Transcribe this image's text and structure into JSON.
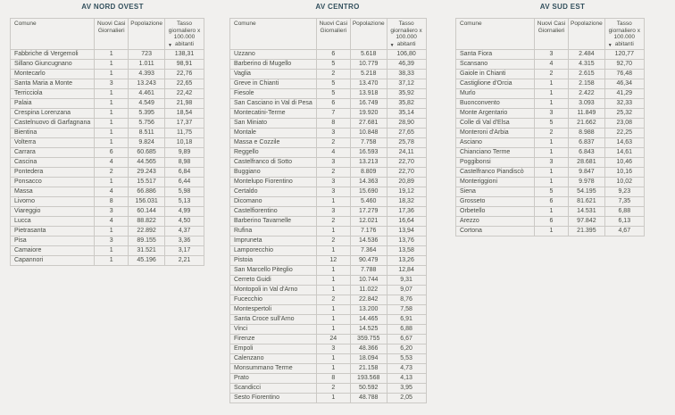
{
  "theme": {
    "background": "#f1f0ee",
    "title_color": "#33505d",
    "text_color": "#474b43",
    "border_color": "#cbc9c5"
  },
  "table": {
    "columns": [
      {
        "label": "Comune"
      },
      {
        "label": "Nuovi Casi Giornalieri"
      },
      {
        "label": "Popolazione"
      },
      {
        "label": "Tasso giornaliero x 100.000 abitanti",
        "sort_indicator": "descending"
      }
    ]
  },
  "regions": [
    {
      "title": "AV NORD OVEST",
      "rows": [
        [
          "Fabbriche di Vergemoli",
          "1",
          "723",
          "138,31"
        ],
        [
          "Sillano Giuncugnano",
          "1",
          "1.011",
          "98,91"
        ],
        [
          "Montecarlo",
          "1",
          "4.393",
          "22,76"
        ],
        [
          "Santa Maria a Monte",
          "3",
          "13.243",
          "22,65"
        ],
        [
          "Terricciola",
          "1",
          "4.461",
          "22,42"
        ],
        [
          "Palaia",
          "1",
          "4.549",
          "21,98"
        ],
        [
          "Crespina Lorenzana",
          "1",
          "5.395",
          "18,54"
        ],
        [
          "Castelnuovo di Garfagnana",
          "1",
          "5.756",
          "17,37"
        ],
        [
          "Bientina",
          "1",
          "8.511",
          "11,75"
        ],
        [
          "Volterra",
          "1",
          "9.824",
          "10,18"
        ],
        [
          "Carrara",
          "6",
          "60.685",
          "9,89"
        ],
        [
          "Cascina",
          "4",
          "44.565",
          "8,98"
        ],
        [
          "Pontedera",
          "2",
          "29.243",
          "6,84"
        ],
        [
          "Ponsacco",
          "1",
          "15.517",
          "6,44"
        ],
        [
          "Massa",
          "4",
          "66.886",
          "5,98"
        ],
        [
          "Livorno",
          "8",
          "156.031",
          "5,13"
        ],
        [
          "Viareggio",
          "3",
          "60.144",
          "4,99"
        ],
        [
          "Lucca",
          "4",
          "88.822",
          "4,50"
        ],
        [
          "Pietrasanta",
          "1",
          "22.892",
          "4,37"
        ],
        [
          "Pisa",
          "3",
          "89.155",
          "3,36"
        ],
        [
          "Camaiore",
          "1",
          "31.521",
          "3,17"
        ],
        [
          "Capannori",
          "1",
          "45.196",
          "2,21"
        ]
      ]
    },
    {
      "title": "AV CENTRO",
      "rows": [
        [
          "Uzzano",
          "6",
          "5.618",
          "106,80"
        ],
        [
          "Barberino di Mugello",
          "5",
          "10.779",
          "46,39"
        ],
        [
          "Vaglia",
          "2",
          "5.218",
          "38,33"
        ],
        [
          "Greve in Chianti",
          "5",
          "13.470",
          "37,12"
        ],
        [
          "Fiesole",
          "5",
          "13.918",
          "35,92"
        ],
        [
          "San Casciano in Val di Pesa",
          "6",
          "16.749",
          "35,82"
        ],
        [
          "Montecatini-Terme",
          "7",
          "19.920",
          "35,14"
        ],
        [
          "San Miniato",
          "8",
          "27.681",
          "28,90"
        ],
        [
          "Montale",
          "3",
          "10.848",
          "27,65"
        ],
        [
          "Massa e Cozzile",
          "2",
          "7.758",
          "25,78"
        ],
        [
          "Reggello",
          "4",
          "16.593",
          "24,11"
        ],
        [
          "Castelfranco di Sotto",
          "3",
          "13.213",
          "22,70"
        ],
        [
          "Buggiano",
          "2",
          "8.809",
          "22,70"
        ],
        [
          "Montelupo Fiorentino",
          "3",
          "14.363",
          "20,89"
        ],
        [
          "Certaldo",
          "3",
          "15.690",
          "19,12"
        ],
        [
          "Dicomano",
          "1",
          "5.460",
          "18,32"
        ],
        [
          "Castelfiorentino",
          "3",
          "17.279",
          "17,36"
        ],
        [
          "Barberino Tavarnelle",
          "2",
          "12.021",
          "16,64"
        ],
        [
          "Rufina",
          "1",
          "7.176",
          "13,94"
        ],
        [
          "Impruneta",
          "2",
          "14.536",
          "13,76"
        ],
        [
          "Lamporecchio",
          "1",
          "7.364",
          "13,58"
        ],
        [
          "Pistoia",
          "12",
          "90.479",
          "13,26"
        ],
        [
          "San Marcello Piteglio",
          "1",
          "7.788",
          "12,84"
        ],
        [
          "Cerreto Guidi",
          "1",
          "10.744",
          "9,31"
        ],
        [
          "Montopoli in Val d'Arno",
          "1",
          "11.022",
          "9,07"
        ],
        [
          "Fucecchio",
          "2",
          "22.842",
          "8,76"
        ],
        [
          "Montespertoli",
          "1",
          "13.200",
          "7,58"
        ],
        [
          "Santa Croce sull'Arno",
          "1",
          "14.465",
          "6,91"
        ],
        [
          "Vinci",
          "1",
          "14.525",
          "6,88"
        ],
        [
          "Firenze",
          "24",
          "359.755",
          "6,67"
        ],
        [
          "Empoli",
          "3",
          "48.366",
          "6,20"
        ],
        [
          "Calenzano",
          "1",
          "18.094",
          "5,53"
        ],
        [
          "Monsummano Terme",
          "1",
          "21.158",
          "4,73"
        ],
        [
          "Prato",
          "8",
          "193.568",
          "4,13"
        ],
        [
          "Scandicci",
          "2",
          "50.592",
          "3,95"
        ],
        [
          "Sesto Fiorentino",
          "1",
          "48.788",
          "2,05"
        ]
      ]
    },
    {
      "title": "AV SUD EST",
      "rows": [
        [
          "Santa Fiora",
          "3",
          "2.484",
          "120,77"
        ],
        [
          "Scansano",
          "4",
          "4.315",
          "92,70"
        ],
        [
          "Gaiole in Chianti",
          "2",
          "2.615",
          "76,48"
        ],
        [
          "Castiglione d'Orcia",
          "1",
          "2.158",
          "46,34"
        ],
        [
          "Murlo",
          "1",
          "2.422",
          "41,29"
        ],
        [
          "Buonconvento",
          "1",
          "3.093",
          "32,33"
        ],
        [
          "Monte Argentario",
          "3",
          "11.849",
          "25,32"
        ],
        [
          "Colle di Val d'Elsa",
          "5",
          "21.662",
          "23,08"
        ],
        [
          "Monteroni d'Arbia",
          "2",
          "8.988",
          "22,25"
        ],
        [
          "Asciano",
          "1",
          "6.837",
          "14,63"
        ],
        [
          "Chianciano Terme",
          "1",
          "6.843",
          "14,61"
        ],
        [
          "Poggibonsi",
          "3",
          "28.681",
          "10,46"
        ],
        [
          "Castelfranco Piandiscò",
          "1",
          "9.847",
          "10,16"
        ],
        [
          "Monteriggioni",
          "1",
          "9.978",
          "10,02"
        ],
        [
          "Siena",
          "5",
          "54.195",
          "9,23"
        ],
        [
          "Grosseto",
          "6",
          "81.621",
          "7,35"
        ],
        [
          "Orbetello",
          "1",
          "14.531",
          "6,88"
        ],
        [
          "Arezzo",
          "6",
          "97.842",
          "6,13"
        ],
        [
          "Cortona",
          "1",
          "21.395",
          "4,67"
        ]
      ]
    }
  ]
}
